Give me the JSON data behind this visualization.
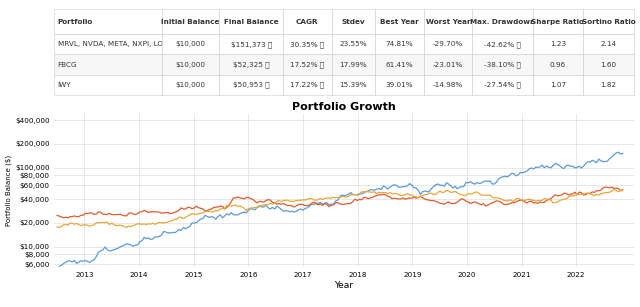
{
  "table": {
    "columns": [
      "Portfolio",
      "Initial Balance",
      "Final Balance",
      "CAGR",
      "Stdev",
      "Best Year",
      "Worst Year",
      "Max. Drawdown",
      "Sharpe Ratio",
      "Sortino Ratio"
    ],
    "rows": [
      [
        "MRVL, NVDA, META, NXPI, LOW",
        "$10,000",
        "$151,373 ⓘ",
        "30.35% ⓘ",
        "23.55%",
        "74.81%",
        "-29.70%",
        "-42.62% ⓘ",
        "1.23",
        "2.14"
      ],
      [
        "FBCG",
        "$10,000",
        "$52,325 ⓘ",
        "17.52% ⓘ",
        "17.99%",
        "61.41%",
        "-23.01%",
        "-38.10% ⓘ",
        "0.96",
        "1.60"
      ],
      [
        "IWY",
        "$10,000",
        "$50,953 ⓘ",
        "17.22% ⓘ",
        "15.39%",
        "39.01%",
        "-14.98%",
        "-27.54% ⓘ",
        "1.07",
        "1.82"
      ]
    ]
  },
  "chart_title": "Portfolio Growth",
  "xlabel": "Year",
  "ylabel": "Portfolio Balance ($)",
  "line_colors": {
    "MRVL": "#5b9bd5",
    "FBCG": "#e05c2e",
    "IWY": "#e8a838"
  },
  "ytick_labels": [
    "$6,000",
    "$8,000",
    "$10,000",
    "$20,000",
    "$40,000",
    "$60,000",
    "$80,000",
    "$100,000",
    "$200,000",
    "$400,000"
  ],
  "ytick_values": [
    6000,
    8000,
    10000,
    20000,
    40000,
    60000,
    80000,
    100000,
    200000,
    400000
  ],
  "ylim_log": [
    5500,
    480000
  ],
  "xtick_years": [
    2013,
    2014,
    2015,
    2016,
    2017,
    2018,
    2019,
    2020,
    2021,
    2022
  ],
  "background_color": "#ffffff",
  "grid_color": "#dddddd",
  "table_header_color": "#ffffff",
  "table_row_colors": [
    "#ffffff",
    "#f7f7f7",
    "#ffffff"
  ]
}
